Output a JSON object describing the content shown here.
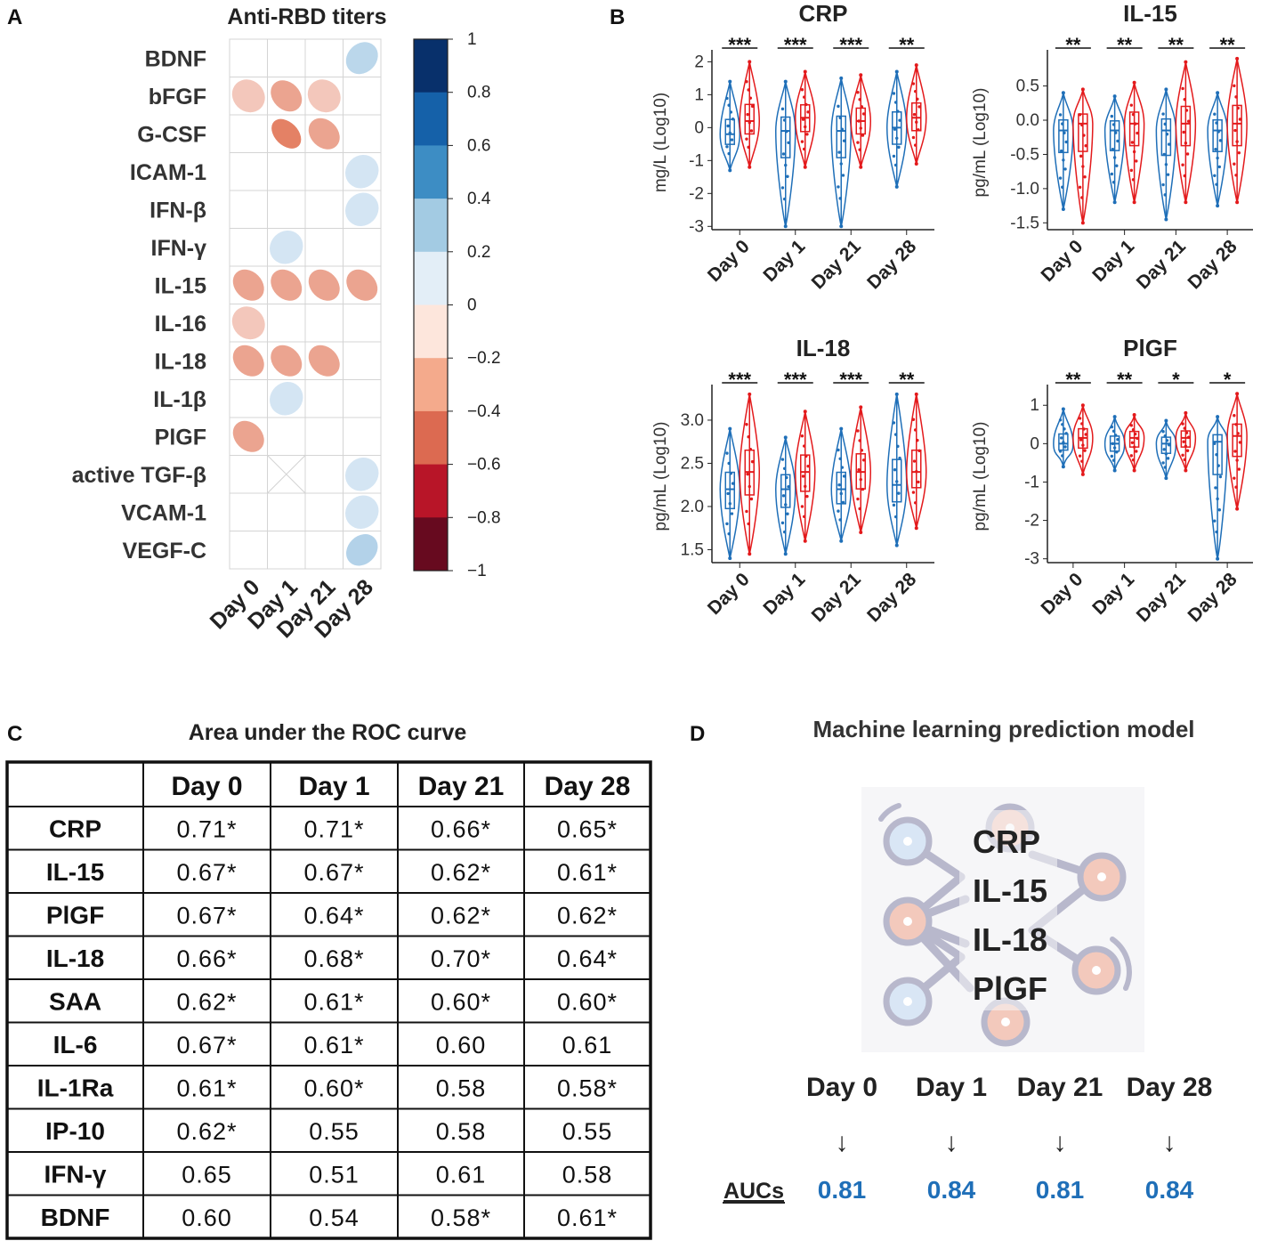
{
  "panel_letters": {
    "a": "A",
    "b": "B",
    "c": "C",
    "d": "D"
  },
  "chart_data": [
    {
      "type": "heatmap",
      "panel": "A",
      "title": "Anti-RBD titers",
      "rows": [
        "BDNF",
        "bFGF",
        "G-CSF",
        "ICAM-1",
        "IFN-β",
        "IFN-γ",
        "IL-15",
        "IL-16",
        "IL-18",
        "IL-1β",
        "PlGF",
        "active TGF-β",
        "VCAM-1",
        "VEGF-C"
      ],
      "columns": [
        "Day 0",
        "Day 1",
        "Day 21",
        "Day 28"
      ],
      "values": [
        [
          null,
          null,
          null,
          0.3
        ],
        [
          -0.2,
          -0.4,
          -0.2,
          null
        ],
        [
          null,
          -0.6,
          -0.4,
          null
        ],
        [
          null,
          null,
          null,
          0.15
        ],
        [
          null,
          null,
          null,
          0.15
        ],
        [
          null,
          0.15,
          null,
          null
        ],
        [
          -0.4,
          -0.4,
          -0.4,
          -0.4
        ],
        [
          -0.2,
          null,
          null,
          null
        ],
        [
          -0.4,
          -0.4,
          -0.4,
          null
        ],
        [
          null,
          0.15,
          null,
          null
        ],
        [
          -0.4,
          null,
          null,
          null
        ],
        [
          null,
          "NA",
          null,
          0.15
        ],
        [
          null,
          null,
          null,
          0.15
        ],
        [
          null,
          null,
          null,
          0.35
        ]
      ],
      "colorbar": {
        "ticks": [
          "1",
          "0.8",
          "0.6",
          "0.4",
          "0.2",
          "0",
          "−0.2",
          "−0.4",
          "−0.6",
          "−0.8",
          "−1"
        ],
        "colors": [
          "#08306b",
          "#1561a9",
          "#3d8dc4",
          "#a3cbe3",
          "#e3eef7",
          "#fde6dc",
          "#f4aa8c",
          "#dc6a51",
          "#b81528",
          "#670a1f"
        ]
      },
      "positive_color": "#82b5db",
      "negative_color": "#ea8f70"
    },
    {
      "type": "violin",
      "panel": "B",
      "title": "CRP",
      "ylabel": "mg/L (Log10)",
      "yticks": [
        "2",
        "1",
        "0",
        "-1",
        "-2",
        "-3"
      ],
      "ylim": [
        -3.1,
        2.2
      ],
      "categories": [
        "Day 0",
        "Day 1",
        "Day 21",
        "Day 28"
      ],
      "significance": [
        "***",
        "***",
        "***",
        "**"
      ],
      "series": [
        {
          "name": "group 1",
          "color": "#1f6fb8",
          "median": [
            -0.2,
            -0.1,
            -0.1,
            0.0
          ],
          "min": [
            -1.3,
            -3.0,
            -3.0,
            -1.8
          ],
          "max": [
            1.4,
            1.4,
            1.5,
            1.7
          ]
        },
        {
          "name": "group 2",
          "color": "#e31a1c",
          "median": [
            0.2,
            0.3,
            0.2,
            0.3
          ],
          "min": [
            -1.2,
            -1.2,
            -1.2,
            -1.1
          ],
          "max": [
            2.0,
            1.7,
            1.6,
            1.9
          ]
        }
      ]
    },
    {
      "type": "violin",
      "panel": "B",
      "title": "IL-15",
      "ylabel": "pg/mL (Log10)",
      "yticks": [
        "0.5",
        "0.0",
        "-0.5",
        "-1.0",
        "-1.5"
      ],
      "ylim": [
        -1.6,
        0.95
      ],
      "categories": [
        "Day 0",
        "Day 1",
        "Day 21",
        "Day 28"
      ],
      "significance": [
        "**",
        "**",
        "**",
        "**"
      ],
      "series": [
        {
          "name": "group 1",
          "color": "#1f6fb8",
          "median": [
            -0.15,
            -0.15,
            -0.15,
            -0.15
          ],
          "min": [
            -1.3,
            -1.2,
            -1.45,
            -1.25
          ],
          "max": [
            0.4,
            0.35,
            0.45,
            0.4
          ]
        },
        {
          "name": "group 2",
          "color": "#e31a1c",
          "median": [
            -0.05,
            -0.05,
            -0.05,
            -0.05
          ],
          "min": [
            -1.5,
            -1.2,
            -1.2,
            -1.2
          ],
          "max": [
            0.45,
            0.55,
            0.85,
            0.9
          ]
        }
      ]
    },
    {
      "type": "violin",
      "panel": "B",
      "title": "IL-18",
      "ylabel": "pg/mL (Log10)",
      "yticks": [
        "3.0",
        "2.5",
        "2.0",
        "1.5"
      ],
      "ylim": [
        1.35,
        3.35
      ],
      "categories": [
        "Day 0",
        "Day 1",
        "Day 21",
        "Day 28"
      ],
      "significance": [
        "***",
        "***",
        "***",
        "**"
      ],
      "series": [
        {
          "name": "group 1",
          "color": "#1f6fb8",
          "median": [
            2.2,
            2.2,
            2.2,
            2.25
          ],
          "min": [
            1.4,
            1.45,
            1.6,
            1.55
          ],
          "max": [
            2.9,
            2.8,
            2.9,
            3.3
          ]
        },
        {
          "name": "group 2",
          "color": "#e31a1c",
          "median": [
            2.4,
            2.4,
            2.4,
            2.4
          ],
          "min": [
            1.45,
            1.6,
            1.7,
            1.75
          ],
          "max": [
            3.3,
            3.1,
            3.15,
            3.3
          ]
        }
      ]
    },
    {
      "type": "violin",
      "panel": "B",
      "title": "PlGF",
      "ylabel": "pg/mL (Log10)",
      "yticks": [
        "1",
        "0",
        "-1",
        "-2",
        "-3"
      ],
      "ylim": [
        -3.1,
        1.4
      ],
      "categories": [
        "Day 0",
        "Day 1",
        "Day 21",
        "Day 28"
      ],
      "significance": [
        "**",
        "**",
        "*",
        "*"
      ],
      "series": [
        {
          "name": "group 1",
          "color": "#1f6fb8",
          "median": [
            0.0,
            0.0,
            0.0,
            0.05
          ],
          "min": [
            -0.6,
            -0.7,
            -0.9,
            -3.0
          ],
          "max": [
            0.9,
            0.7,
            0.6,
            0.7
          ]
        },
        {
          "name": "group 2",
          "color": "#e31a1c",
          "median": [
            0.15,
            0.15,
            0.15,
            0.2
          ],
          "min": [
            -0.8,
            -0.7,
            -0.7,
            -1.7
          ],
          "max": [
            1.0,
            0.75,
            0.8,
            1.3
          ]
        }
      ]
    },
    {
      "type": "table",
      "panel": "C",
      "title": "Area under the ROC curve",
      "columns": [
        "Day 0",
        "Day 1",
        "Day 21",
        "Day 28"
      ],
      "rows": [
        {
          "label": "CRP",
          "cells": [
            "0.71*",
            "0.71*",
            "0.66*",
            "0.65*"
          ]
        },
        {
          "label": "IL-15",
          "cells": [
            "0.67*",
            "0.67*",
            "0.62*",
            "0.61*"
          ]
        },
        {
          "label": "PlGF",
          "cells": [
            "0.67*",
            "0.64*",
            "0.62*",
            "0.62*"
          ]
        },
        {
          "label": "IL-18",
          "cells": [
            "0.66*",
            "0.68*",
            "0.70*",
            "0.64*"
          ]
        },
        {
          "label": "SAA",
          "cells": [
            "0.62*",
            "0.61*",
            "0.60*",
            "0.60*"
          ]
        },
        {
          "label": "IL-6",
          "cells": [
            "0.67*",
            "0.61*",
            "0.60",
            "0.61"
          ]
        },
        {
          "label": "IL-1Ra",
          "cells": [
            "0.61*",
            "0.60*",
            "0.58",
            "0.58*"
          ]
        },
        {
          "label": "IP-10",
          "cells": [
            "0.62*",
            "0.55",
            "0.58",
            "0.55"
          ]
        },
        {
          "label": "IFN-γ",
          "cells": [
            "0.65",
            "0.51",
            "0.61",
            "0.58"
          ]
        },
        {
          "label": "BDNF",
          "cells": [
            "0.60",
            "0.54",
            "0.58*",
            "0.61*"
          ]
        }
      ]
    }
  ],
  "panel_d": {
    "title": "Machine learning prediction model",
    "features": [
      "CRP",
      "IL-15",
      "IL-18",
      "PlGF"
    ],
    "days": [
      "Day 0",
      "Day 1",
      "Day 21",
      "Day 28"
    ],
    "auc_label": "AUCs",
    "aucs": [
      "0.81",
      "0.84",
      "0.81",
      "0.84"
    ],
    "arrow": "↓"
  }
}
